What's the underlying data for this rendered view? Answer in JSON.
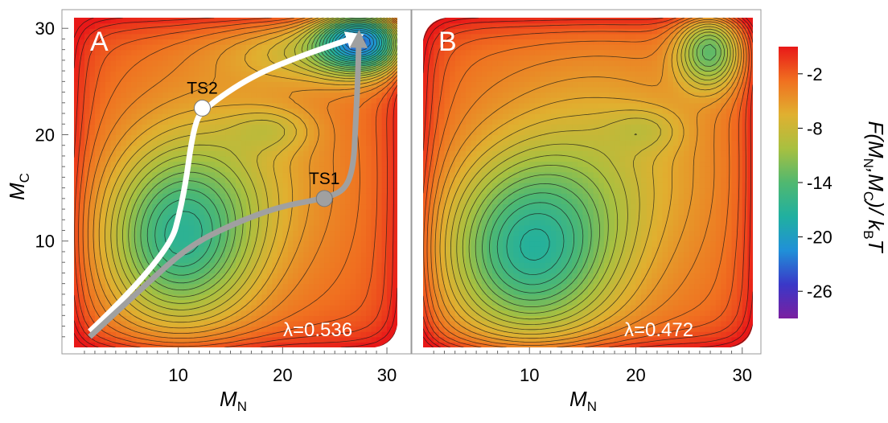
{
  "chart_data": [
    {
      "type": "contour",
      "panel_label": "A",
      "xlabel_main": "M",
      "xlabel_sub": "N",
      "ylabel_main": "M",
      "ylabel_sub": "C",
      "xlim": [
        0,
        31
      ],
      "ylim": [
        0,
        31
      ],
      "xticks": [
        10,
        20,
        30
      ],
      "yticks": [
        10,
        20,
        30
      ],
      "annotation": "λ=0.536",
      "minima": [
        {
          "x": 10,
          "y": 10,
          "F": -15
        },
        {
          "x": 27.5,
          "y": 29,
          "F": -27
        },
        {
          "x": 19,
          "y": 20.5,
          "F": -13
        }
      ],
      "paths": [
        {
          "color": "#ffffff",
          "points": [
            [
              1.5,
              1.5
            ],
            [
              9,
              8.5
            ],
            [
              10.5,
              14
            ],
            [
              11.5,
              21
            ],
            [
              12.5,
              22.5
            ],
            [
              17,
              25.5
            ],
            [
              22,
              27.5
            ],
            [
              26.5,
              29
            ]
          ]
        },
        {
          "color": "#a0a0a0",
          "points": [
            [
              1.5,
              1
            ],
            [
              7,
              6
            ],
            [
              11,
              9.5
            ],
            [
              15,
              11.5
            ],
            [
              19.5,
              13.2
            ],
            [
              24,
              14
            ],
            [
              26,
              14.8
            ],
            [
              26.8,
              17
            ],
            [
              27,
              21
            ],
            [
              27.2,
              25
            ],
            [
              27.3,
              28.5
            ]
          ]
        }
      ],
      "transition_states": [
        {
          "label": "TS2",
          "x": 12.3,
          "y": 22.5,
          "color": "#ffffff"
        },
        {
          "label": "TS1",
          "x": 24,
          "y": 14,
          "color": "#a0a0a0"
        }
      ]
    },
    {
      "type": "contour",
      "panel_label": "B",
      "xlabel_main": "M",
      "xlabel_sub": "N",
      "xlim": [
        0,
        31
      ],
      "ylim": [
        0,
        31
      ],
      "xticks": [
        10,
        20,
        30
      ],
      "annotation": "λ=0.472",
      "minima": [
        {
          "x": 10,
          "y": 9,
          "F": -17
        },
        {
          "x": 27,
          "y": 28,
          "F": -19
        },
        {
          "x": 21,
          "y": 20.5,
          "F": -11
        }
      ]
    }
  ],
  "colorbar": {
    "label_main": "F(M",
    "label_n": "N",
    "label_mid": ",M",
    "label_c": "C",
    "label_end": ")/ k",
    "label_b": "B",
    "label_t": "T",
    "ticks": [
      -2,
      -8,
      -14,
      -20,
      -26
    ],
    "range": [
      -29,
      1
    ],
    "colors": [
      "#7a1fa0",
      "#3a38c8",
      "#2090d8",
      "#20b0a0",
      "#50b870",
      "#a8c040",
      "#e0b030",
      "#f07020",
      "#e81818"
    ]
  }
}
